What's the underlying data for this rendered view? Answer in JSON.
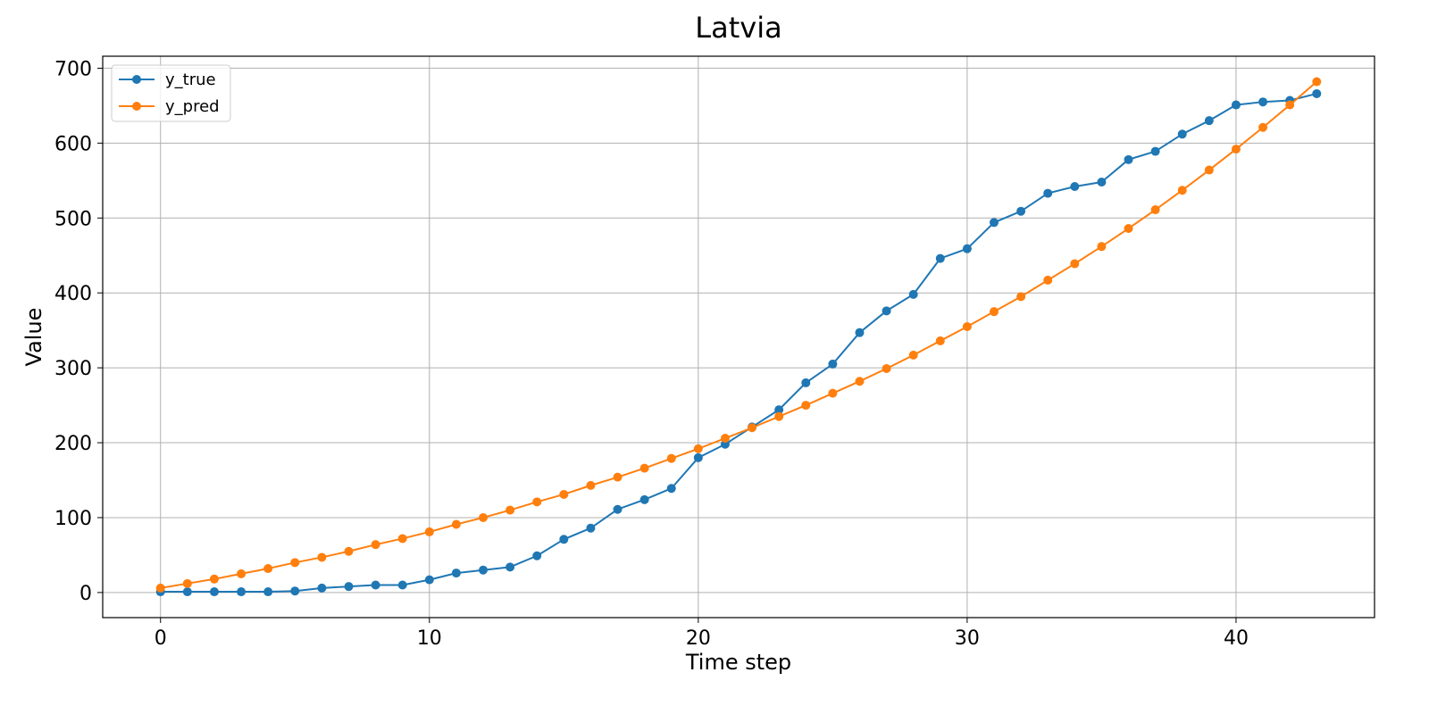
{
  "chart_data": {
    "type": "line",
    "title": "Latvia",
    "xlabel": "Time step",
    "ylabel": "Value",
    "xlim": [
      -2.15,
      45.15
    ],
    "ylim": [
      -33.5,
      716
    ],
    "xticks": [
      0,
      10,
      20,
      30,
      40
    ],
    "yticks": [
      0,
      100,
      200,
      300,
      400,
      500,
      600,
      700
    ],
    "grid": true,
    "legend_position": "upper left",
    "x": [
      0,
      1,
      2,
      3,
      4,
      5,
      6,
      7,
      8,
      9,
      10,
      11,
      12,
      13,
      14,
      15,
      16,
      17,
      18,
      19,
      20,
      21,
      22,
      23,
      24,
      25,
      26,
      27,
      28,
      29,
      30,
      31,
      32,
      33,
      34,
      35,
      36,
      37,
      38,
      39,
      40,
      41,
      42,
      43
    ],
    "series": [
      {
        "name": "y_true",
        "color": "#1f77b4",
        "values": [
          1,
          1,
          1,
          1,
          1,
          2,
          6,
          8,
          10,
          10,
          17,
          26,
          30,
          34,
          49,
          71,
          86,
          111,
          124,
          139,
          180,
          198,
          221,
          244,
          280,
          305,
          347,
          376,
          398,
          446,
          459,
          494,
          509,
          533,
          542,
          548,
          578,
          589,
          612,
          630,
          651,
          655,
          657,
          666
        ]
      },
      {
        "name": "y_pred",
        "color": "#ff7f0e",
        "values": [
          6,
          12,
          18,
          25,
          32,
          40,
          47,
          55,
          64,
          72,
          81,
          91,
          100,
          110,
          121,
          131,
          143,
          154,
          166,
          179,
          192,
          206,
          220,
          235,
          250,
          266,
          282,
          299,
          317,
          336,
          355,
          375,
          395,
          417,
          439,
          462,
          486,
          511,
          537,
          564,
          592,
          621,
          651,
          682
        ]
      }
    ]
  }
}
